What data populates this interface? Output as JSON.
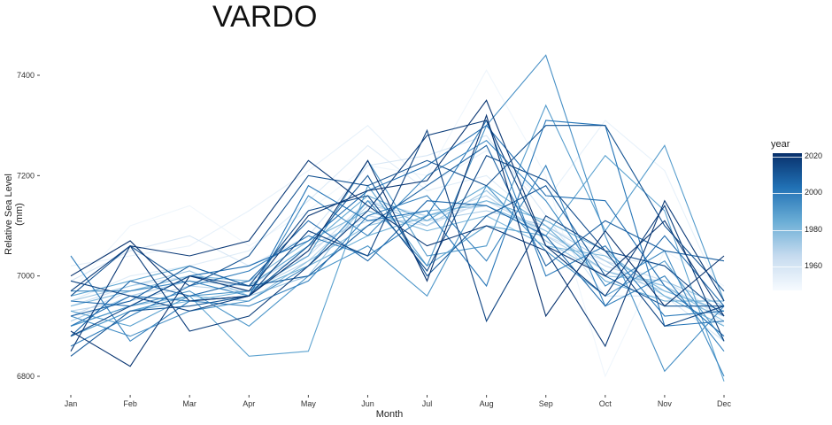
{
  "chart_data": {
    "type": "line",
    "title": "VARDO",
    "xlabel": "Month",
    "ylabel": "Relative Sea Level (mm)",
    "categories": [
      "Jan",
      "Feb",
      "Mar",
      "Apr",
      "May",
      "Jun",
      "Jul",
      "Aug",
      "Sep",
      "Oct",
      "Nov",
      "Dec"
    ],
    "y_ticks": [
      "6800",
      "7000",
      "7200",
      "7400"
    ],
    "ylim": [
      6760,
      7445
    ],
    "grid": false,
    "legend": {
      "title": "year",
      "position": "right",
      "ticks": [
        "2020",
        "2000",
        "1980",
        "1960"
      ],
      "range": [
        1947,
        2022
      ],
      "colors": [
        "#f7fbff",
        "#c6dbef",
        "#6baed6",
        "#2171b5",
        "#08306b"
      ]
    },
    "series": [
      {
        "year": 1950,
        "values": [
          6970,
          7100,
          7140,
          7060,
          7130,
          7220,
          7200,
          7410,
          7200,
          6800,
          7050,
          6980
        ]
      },
      {
        "year": 1953,
        "values": [
          7020,
          7040,
          7060,
          7130,
          7210,
          7300,
          7180,
          7250,
          7150,
          7310,
          7210,
          6950
        ]
      },
      {
        "year": 1956,
        "values": [
          6950,
          7000,
          7020,
          7050,
          7150,
          7260,
          7170,
          7200,
          7100,
          7040,
          7020,
          6900
        ]
      },
      {
        "year": 1959,
        "values": [
          6990,
          7050,
          7080,
          7020,
          7080,
          7220,
          7240,
          7280,
          7120,
          6960,
          6960,
          6870
        ]
      },
      {
        "year": 1962,
        "values": [
          6940,
          6980,
          7000,
          6990,
          7040,
          7150,
          7120,
          7140,
          7080,
          7030,
          6990,
          6920
        ]
      },
      {
        "year": 1965,
        "values": [
          6920,
          6970,
          6990,
          6980,
          7050,
          7120,
          7100,
          7150,
          7090,
          7020,
          6980,
          6920
        ]
      },
      {
        "year": 1968,
        "values": [
          6930,
          6950,
          6980,
          6970,
          7030,
          7140,
          7120,
          7160,
          7080,
          7010,
          6970,
          6930
        ]
      },
      {
        "year": 1971,
        "values": [
          6910,
          6960,
          6990,
          6980,
          7060,
          7110,
          7110,
          7130,
          7100,
          7030,
          6960,
          6920
        ]
      },
      {
        "year": 1974,
        "values": [
          6950,
          6980,
          7010,
          6960,
          7000,
          7150,
          7100,
          7170,
          7070,
          7000,
          6990,
          6940
        ]
      },
      {
        "year": 1977,
        "values": [
          6900,
          6940,
          6960,
          6950,
          7030,
          7100,
          7130,
          7140,
          7090,
          7010,
          6980,
          6910
        ]
      },
      {
        "year": 1980,
        "values": [
          6940,
          6970,
          7000,
          6990,
          7070,
          7130,
          7090,
          7120,
          7060,
          7040,
          6970,
          6930
        ]
      },
      {
        "year": 1983,
        "values": [
          6880,
          6930,
          6950,
          6970,
          7020,
          7080,
          7120,
          7150,
          7110,
          7050,
          6960,
          6900
        ]
      },
      {
        "year": 1986,
        "values": [
          6960,
          6990,
          7020,
          6980,
          7060,
          7160,
          7110,
          7180,
          7100,
          6990,
          6950,
          6950
        ]
      },
      {
        "year": 1988,
        "values": [
          6930,
          6900,
          6960,
          6840,
          6850,
          7180,
          7020,
          7100,
          7080,
          7240,
          7130,
          6790
        ]
      },
      {
        "year": 1990,
        "values": [
          6880,
          6930,
          6960,
          6970,
          7040,
          7230,
          7040,
          7060,
          7340,
          7090,
          7260,
          6950
        ]
      },
      {
        "year": 1992,
        "values": [
          6900,
          6940,
          6970,
          6900,
          7000,
          7060,
          6960,
          7180,
          7050,
          6960,
          7030,
          6870
        ]
      },
      {
        "year": 1994,
        "values": [
          6920,
          6880,
          6930,
          6950,
          7020,
          7150,
          7020,
          7300,
          7440,
          7080,
          6810,
          6940
        ]
      },
      {
        "year": 1996,
        "values": [
          6970,
          6970,
          6990,
          6960,
          7160,
          7080,
          7200,
          7270,
          7150,
          6980,
          7050,
          6800
        ]
      },
      {
        "year": 1998,
        "values": [
          7040,
          6870,
          6950,
          6940,
          6990,
          7120,
          7160,
          7030,
          7220,
          6940,
          7000,
          6850
        ]
      },
      {
        "year": 2000,
        "values": [
          6860,
          6920,
          6980,
          7010,
          7080,
          7040,
          7120,
          7310,
          7000,
          7060,
          6920,
          6930
        ]
      },
      {
        "year": 2002,
        "values": [
          6900,
          6960,
          6950,
          6960,
          7180,
          7110,
          7130,
          6980,
          7310,
          7300,
          6900,
          6910
        ]
      },
      {
        "year": 2004,
        "values": [
          6950,
          6940,
          7000,
          7020,
          7070,
          7170,
          7220,
          7300,
          7160,
          7150,
          6980,
          6880
        ]
      },
      {
        "year": 2006,
        "values": [
          6880,
          6990,
          6960,
          6990,
          7110,
          7030,
          7150,
          7140,
          7080,
          6940,
          7080,
          6940
        ]
      },
      {
        "year": 2008,
        "values": [
          6920,
          6950,
          7020,
          6980,
          7000,
          7100,
          7180,
          7260,
          7020,
          7110,
          7050,
          7030
        ]
      },
      {
        "year": 2010,
        "values": [
          6840,
          6930,
          6940,
          6960,
          7060,
          7200,
          7000,
          7120,
          7180,
          7000,
          6940,
          6940
        ]
      },
      {
        "year": 2012,
        "values": [
          6960,
          7060,
          6980,
          7040,
          7200,
          7180,
          7230,
          7180,
          7300,
          7300,
          7100,
          6970
        ]
      },
      {
        "year": 2014,
        "values": [
          6880,
          6940,
          7000,
          6980,
          7130,
          7160,
          7010,
          7240,
          7190,
          7050,
          7020,
          6920
        ]
      },
      {
        "year": 2016,
        "values": [
          6990,
          6960,
          6930,
          6960,
          7090,
          7040,
          7290,
          6910,
          7120,
          7050,
          6900,
          6940
        ]
      },
      {
        "year": 2018,
        "values": [
          6970,
          7060,
          6890,
          6920,
          7020,
          7130,
          7280,
          7310,
          7060,
          6960,
          7140,
          6870
        ]
      },
      {
        "year": 2019,
        "values": [
          6850,
          7060,
          7040,
          7070,
          7230,
          7140,
          7060,
          7100,
          7050,
          6860,
          7150,
          6950
        ]
      },
      {
        "year": 2020,
        "values": [
          6890,
          6820,
          7000,
          6970,
          7120,
          7170,
          7190,
          7350,
          7060,
          7000,
          7110,
          6920
        ]
      },
      {
        "year": 2021,
        "values": [
          7000,
          7070,
          6950,
          6960,
          7050,
          7230,
          6990,
          7320,
          6920,
          7090,
          6940,
          7040
        ]
      }
    ]
  }
}
